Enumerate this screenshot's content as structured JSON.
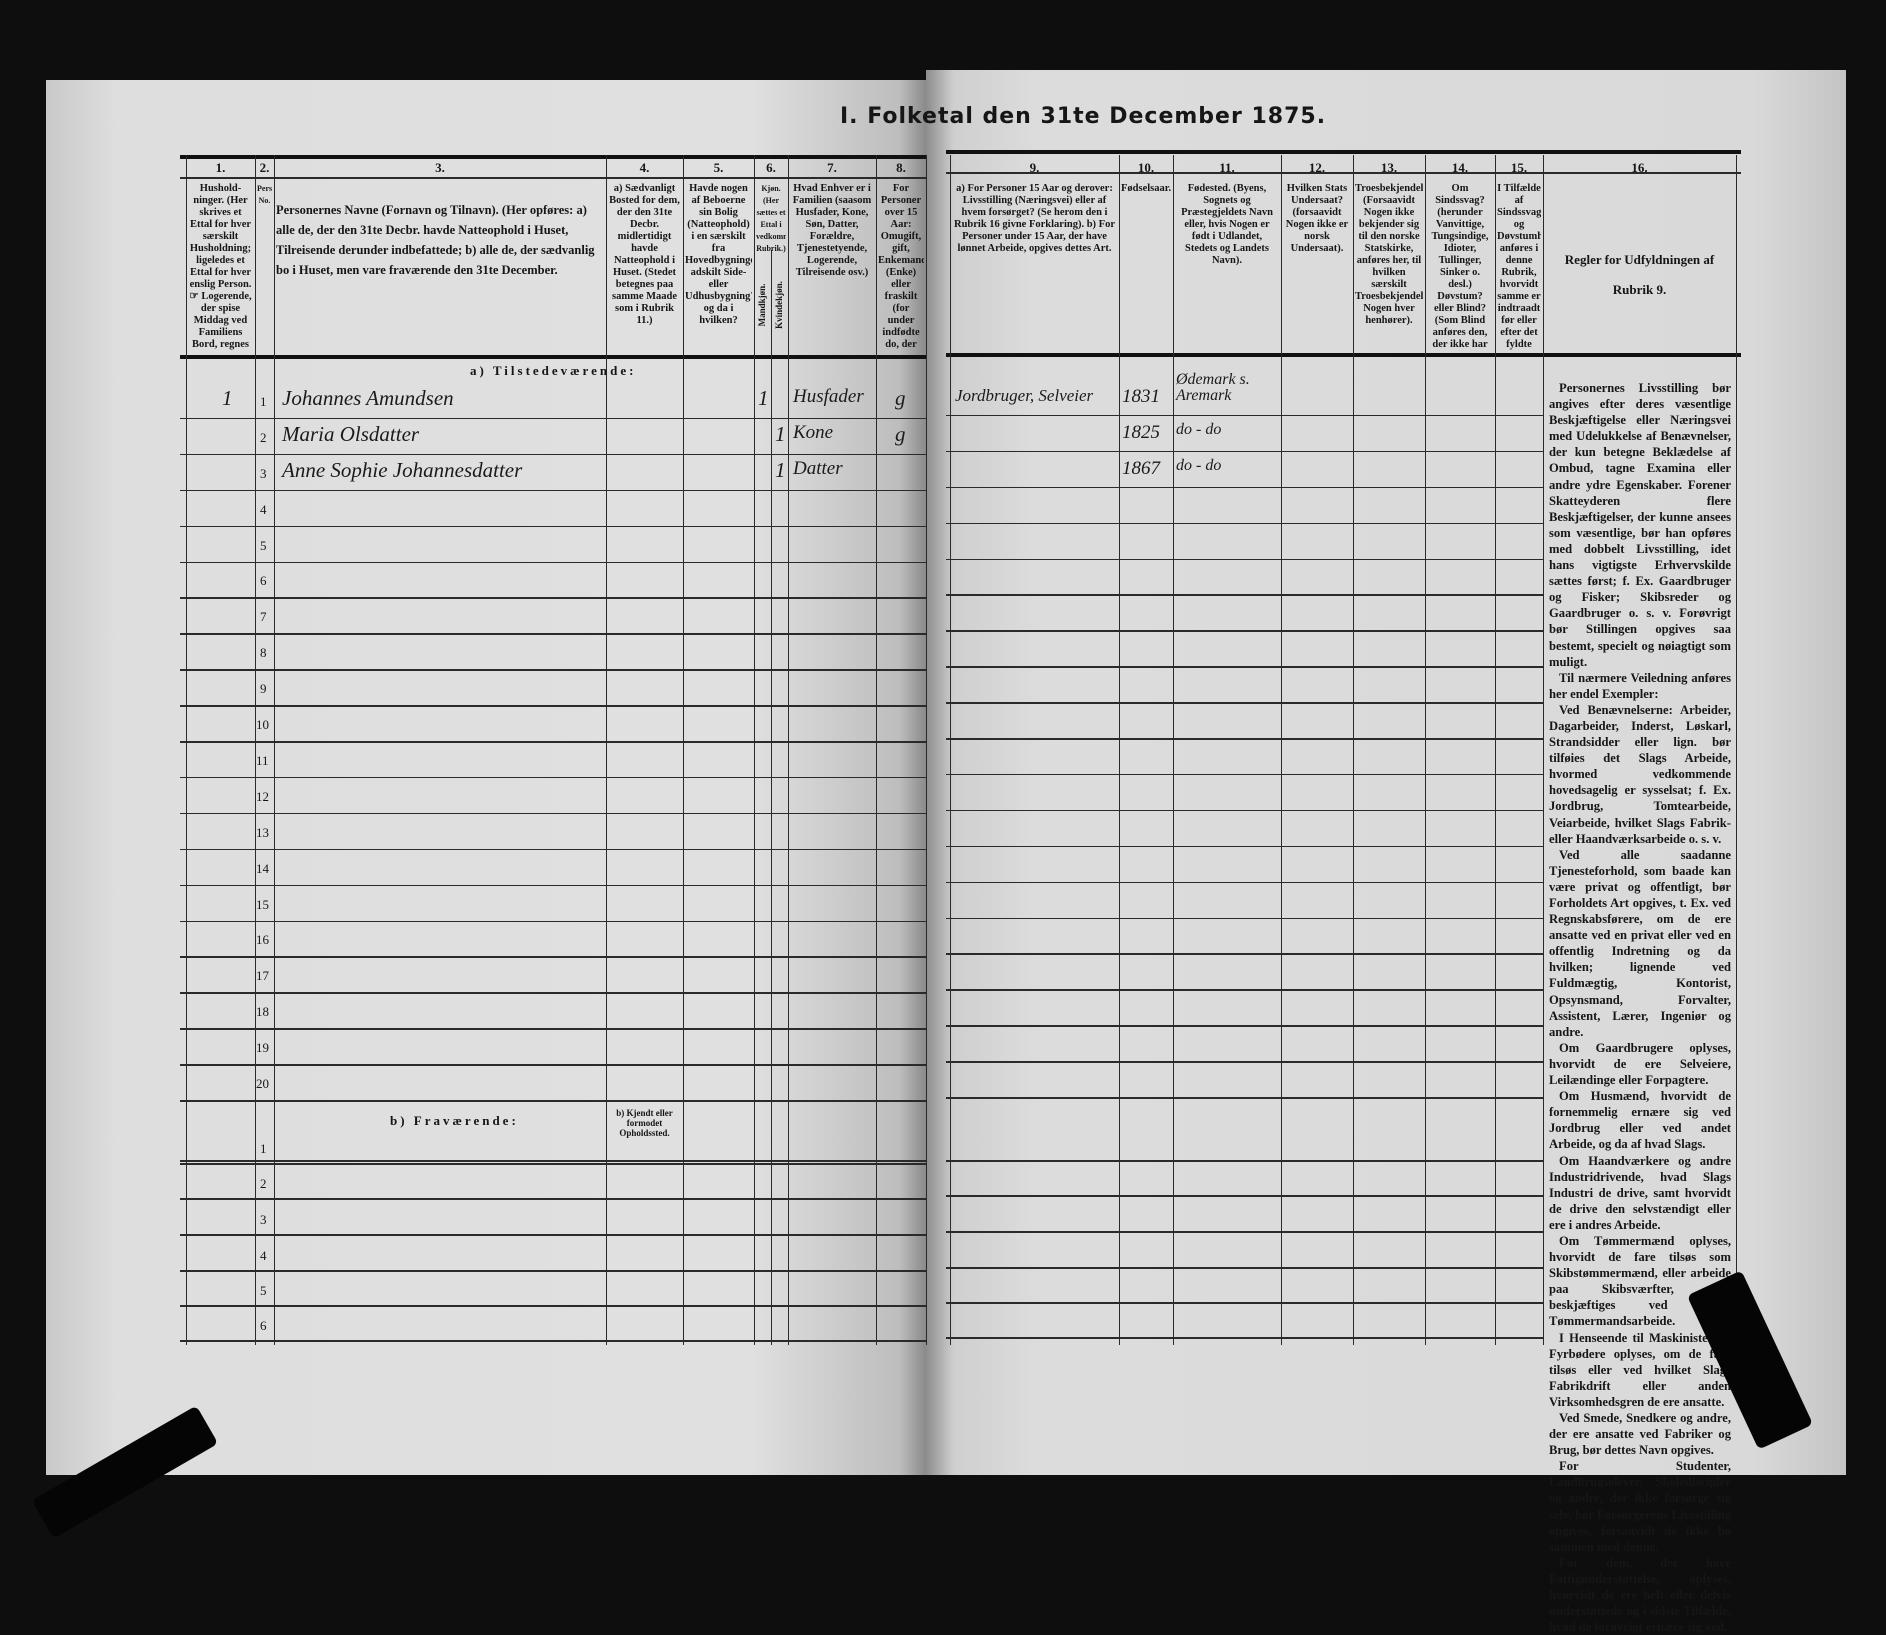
{
  "title": "I. Folketal den 31te December 1875.",
  "columns": [
    {
      "number": "1.",
      "header": "Hushold-ninger. (Her skrives et Ettal for hver særskilt Husholdning; ligeledes et Ettal for hver enslig Person. ☞ Logerende, der spise Middag ved Familiens Bord, regnes ikke som enslige)."
    },
    {
      "number": "2.",
      "header": "Personernes No."
    },
    {
      "number": "3.",
      "header": "Personernes Navne (Fornavn og Tilnavn). (Her opføres: a) alle de, der den 31te Decbr. havde Natteophold i Huset, Tilreisende derunder indbefattede; b) alle de, der sædvanlig bo i Huset, men vare fraværende den 31te December."
    },
    {
      "number": "4.",
      "header": "a) Sædvanligt Bosted for dem, der den 31te Decbr. midlertidigt havde Natteophold i Huset. (Stedet betegnes paa samme Maade som i Rubrik 11.)"
    },
    {
      "number": "5.",
      "header": "Havde nogen af Beboerne sin Bolig (Natteophold) i en særskilt fra Hovedbygningen adskilt Side- eller Udhusbygning? og da i hvilken?"
    },
    {
      "number": "6.",
      "header": "Kjøn. (Her sættes et Ettal i vedkommende Rubrik.)",
      "sub": [
        "Mandkjøn.",
        "Kvindekjøn."
      ]
    },
    {
      "number": "7.",
      "header": "Hvad Enhver er i Familien (saasom Husfader, Kone, Søn, Datter, Forældre, Tjenestetyende, Logerende, Tilreisende osv.)"
    },
    {
      "number": "8.",
      "header": "For Personer over 15 Aar: Omugift, gift, Enkemand (Enke) eller fraskilt (for under indfødte do, der ere fraskilte med Hensyn til Bord og Seng). Betegnes saaledes: ug., g., e., f."
    },
    {
      "number": "9.",
      "header": "a) For Personer 15 Aar og derover: Livsstilling (Næringsvei) eller af hvem forsørget? (Se herom den i Rubrik 16 givne Forklaring). b) For Personer under 15 Aar, der have lønnet Arbeide, opgives dettes Art."
    },
    {
      "number": "10.",
      "header": "Fødselsaar."
    },
    {
      "number": "11.",
      "header": "Fødested. (Byens, Sognets og Præstegjeldets Navn eller, hvis Nogen er født i Udlandet, Stedets og Landets Navn)."
    },
    {
      "number": "12.",
      "header": "Hvilken Stats Undersaat? (forsaavidt Nogen ikke er norsk Undersaat)."
    },
    {
      "number": "13.",
      "header": "Troesbekjendelse. (Forsaavidt Nogen ikke bekjender sig til den norske Statskirke, anføres her, til hvilken særskilt Troesbekjendelse Nogen hver henhører)."
    },
    {
      "number": "14.",
      "header": "Om Sindssvag? (herunder Vanvittige, Tungsindige, Idioter, Tullinger, Sinker o. desl.) Døvstum? eller Blind? (Som Blind anføres den, der ikke har Gangsyn)."
    },
    {
      "number": "15.",
      "header": "I Tilfælde af Sindssvaghed og Døvstumhed anføres i denne Rubrik, hvorvidt samme er indtraadt før eller efter det fyldte 4de Aar."
    },
    {
      "number": "16.",
      "header": "Regler for Udfyldningen af Rubrik 9."
    }
  ],
  "sections": {
    "present": "a) Tilstedeværende:",
    "absent": "b) Fraværende:",
    "absent_col4": "b) Kjendt eller formodet Opholdssted."
  },
  "present_row_numbers": [
    "1",
    "2",
    "3",
    "4",
    "5",
    "6",
    "7",
    "8",
    "9",
    "10",
    "11",
    "12",
    "13",
    "14",
    "15",
    "16",
    "17",
    "18",
    "19",
    "20"
  ],
  "absent_row_numbers": [
    "1",
    "2",
    "3",
    "4",
    "5",
    "6"
  ],
  "entries": [
    {
      "household": "1",
      "no": "1",
      "name": "Johannes Amundsen",
      "male": "1",
      "female": "",
      "role": "Husfader",
      "marital": "g",
      "occupation": "Jordbruger, Selveier",
      "born": "1831",
      "birthplace": "Ødemark s. Aremark"
    },
    {
      "household": "",
      "no": "2",
      "name": "Maria Olsdatter",
      "male": "",
      "female": "1",
      "role": "Kone",
      "marital": "g",
      "occupation": "",
      "born": "1825",
      "birthplace": "do - do"
    },
    {
      "household": "",
      "no": "3",
      "name": "Anne Sophie Johannesdatter",
      "male": "",
      "female": "1",
      "role": "Datter",
      "marital": "",
      "occupation": "",
      "born": "1867",
      "birthplace": "do - do"
    }
  ],
  "rules_paragraphs": [
    "Personernes Livsstilling bør angives efter deres væsentlige Beskjæftigelse eller Næringsvei med Udelukkelse af Benævnelser, der kun betegne Beklædelse af Ombud, tagne Examina eller andre ydre Egenskaber. Forener Skatteyderen flere Beskjæftigelser, der kunne ansees som væsentlige, bør han opføres med dobbelt Livsstilling, idet hans vigtigste Erhvervskilde sættes først; f. Ex. Gaardbruger og Fisker; Skibsreder og Gaardbruger o. s. v. Forøvrigt bør Stillingen opgives saa bestemt, specielt og nøiagtigt som muligt.",
    "Til nærmere Veiledning anføres her endel Exempler:",
    "Ved Benævnelserne: Arbeider, Dagarbeider, Inderst, Løskarl, Strandsidder eller lign. bør tilføies det Slags Arbeide, hvormed vedkommende hovedsagelig er sysselsat; f. Ex. Jordbrug, Tomtearbeide, Veiarbeide, hvilket Slags Fabrik- eller Haandværksarbeide o. s. v.",
    "Ved alle saadanne Tjenesteforhold, som baade kan være privat og offentligt, bør Forholdets Art opgives, t. Ex. ved Regnskabsførere, om de ere ansatte ved en privat eller ved en offentlig Indretning og da hvilken; lignende ved Fuldmægtig, Kontorist, Opsynsmand, Forvalter, Assistent, Lærer, Ingeniør og andre.",
    "Om Gaardbrugere oplyses, hvorvidt de ere Selveiere, Leilændinge eller Forpagtere.",
    "Om Husmænd, hvorvidt de fornemmelig ernære sig ved Jordbrug eller ved andet Arbeide, og da af hvad Slags.",
    "Om Haandværkere og andre Industridrivende, hvad Slags Industri de drive, samt hvorvidt de drive den selvstændigt eller ere i andres Arbeide.",
    "Om Tømmermænd oplyses, hvorvidt de fare tilsøs som Skibstømmermænd, eller arbeide paa Skibsværfter, eller beskjæftiges ved andet Tømmermandsarbeide.",
    "I Henseende til Maskinister og Fyrbødere oplyses, om de fare tilsøs eller ved hvilket Slags Fabrikdrift eller anden Virksomhedsgren de ere ansatte.",
    "Ved Smede, Snedkere og andre, der ere ansatte ved Fabriker og Brug, bør dettes Navn opgives.",
    "For Studenter, Landbrugselever, Skolediscipler og andre, der ikke forsørge sig selv, bør Forsørgerens Livsstilling opgives, forsaavidt de ikke bo sammen med denne.",
    "For dem, der have Fattigunderstøttelse, oplyses, hvorvidt de ere helt eller delvis understøttede og i sidste Tilfælde, hvad de forøvrigt ernære sig ved."
  ],
  "colors": {
    "background": "#0e0e0e",
    "paper": "#dcdcdc",
    "ink": "#161616"
  }
}
